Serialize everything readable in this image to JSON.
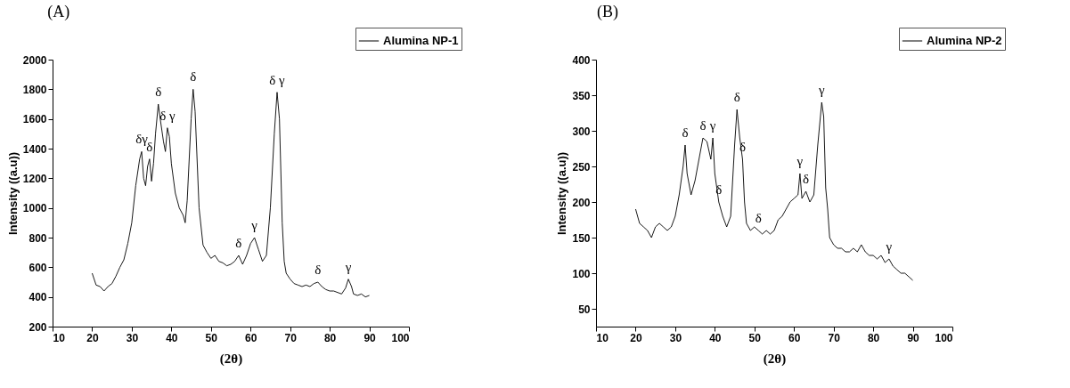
{
  "chart_data": [
    {
      "type": "line",
      "title": "(A)",
      "xlabel": "(2θ)",
      "ylabel": "Intensity ((a.u))",
      "xlim": [
        10,
        100
      ],
      "xticks": [
        10,
        20,
        30,
        40,
        50,
        60,
        70,
        80,
        90,
        100
      ],
      "ylim": [
        200,
        2000
      ],
      "yticks": [
        200,
        400,
        600,
        800,
        1000,
        1200,
        1400,
        1600,
        1800,
        2000
      ],
      "grid": false,
      "legend": "top right",
      "series": [
        {
          "name": "Alumina NP-1",
          "color": "#000000",
          "x": [
            20,
            21,
            22,
            23,
            24,
            25,
            26,
            27,
            28,
            29,
            30,
            31,
            32,
            32.5,
            33,
            33.5,
            34,
            34.5,
            35,
            35.5,
            36,
            36.7,
            37.3,
            38,
            38.5,
            39,
            39.5,
            40,
            41,
            42,
            43,
            43.5,
            44,
            45,
            45.5,
            46,
            47,
            48,
            49,
            50,
            51,
            52,
            53,
            54,
            55,
            56,
            57,
            58,
            59,
            60,
            61,
            62,
            63,
            64,
            65,
            66,
            66.7,
            67.3,
            68,
            68.5,
            69,
            70,
            71,
            72,
            73,
            74,
            75,
            76,
            77,
            78,
            79,
            80,
            81,
            82,
            83,
            84,
            84.7,
            85.5,
            86,
            87,
            88,
            89,
            90
          ],
          "values": [
            560,
            480,
            470,
            440,
            470,
            490,
            540,
            600,
            650,
            760,
            900,
            1150,
            1330,
            1380,
            1200,
            1150,
            1280,
            1330,
            1180,
            1300,
            1500,
            1700,
            1580,
            1450,
            1380,
            1540,
            1480,
            1300,
            1100,
            1000,
            950,
            900,
            1050,
            1600,
            1800,
            1650,
            1000,
            750,
            700,
            660,
            680,
            640,
            630,
            610,
            620,
            640,
            680,
            620,
            680,
            760,
            800,
            720,
            640,
            680,
            1000,
            1500,
            1780,
            1600,
            900,
            640,
            560,
            520,
            490,
            480,
            470,
            480,
            470,
            490,
            500,
            470,
            450,
            440,
            440,
            430,
            420,
            460,
            520,
            470,
            420,
            410,
            420,
            400,
            410
          ]
        }
      ],
      "annotations": [
        {
          "text": "δγ",
          "x": 32.5,
          "y": 1380
        },
        {
          "text": "δ",
          "x": 34.5,
          "y": 1330
        },
        {
          "text": "δ",
          "x": 36.7,
          "y": 1700
        },
        {
          "text": "δ γ",
          "x": 39,
          "y": 1540
        },
        {
          "text": "δ",
          "x": 45.5,
          "y": 1800
        },
        {
          "text": "δ γ",
          "x": 66.7,
          "y": 1780
        },
        {
          "text": "δ",
          "x": 57,
          "y": 680
        },
        {
          "text": "γ",
          "x": 61,
          "y": 800
        },
        {
          "text": "δ",
          "x": 77,
          "y": 500
        },
        {
          "text": "γ",
          "x": 84.7,
          "y": 520
        }
      ]
    },
    {
      "type": "line",
      "title": "(B)",
      "xlabel": "(2θ)",
      "ylabel": "Intensity ((a.u))",
      "xlim": [
        10,
        100
      ],
      "xticks": [
        10,
        20,
        30,
        40,
        50,
        60,
        70,
        80,
        90,
        100
      ],
      "ylim": [
        25,
        400
      ],
      "yticks": [
        50,
        100,
        150,
        200,
        250,
        300,
        350,
        400
      ],
      "grid": false,
      "legend": "top right",
      "series": [
        {
          "name": "Alumina NP-2",
          "color": "#000000",
          "x": [
            20,
            21,
            22,
            23,
            24,
            25,
            26,
            27,
            28,
            29,
            30,
            31,
            32,
            32.5,
            33,
            34,
            35,
            36,
            37,
            38,
            39,
            39.5,
            40,
            41,
            42,
            43,
            44,
            45,
            45.6,
            46.3,
            47,
            47.5,
            48,
            49,
            50,
            51,
            52,
            53,
            54,
            55,
            56,
            57,
            58,
            59,
            60,
            61,
            61.5,
            62,
            63,
            64,
            65,
            66,
            67,
            67.5,
            68,
            68.5,
            69,
            70,
            71,
            72,
            73,
            74,
            75,
            76,
            77,
            78,
            79,
            80,
            81,
            82,
            83,
            84,
            85,
            86,
            87,
            88,
            89,
            90
          ],
          "values": [
            190,
            170,
            165,
            160,
            150,
            165,
            170,
            165,
            160,
            165,
            180,
            210,
            250,
            280,
            240,
            210,
            230,
            260,
            290,
            285,
            260,
            290,
            240,
            200,
            180,
            165,
            180,
            280,
            330,
            290,
            260,
            200,
            170,
            160,
            165,
            160,
            155,
            160,
            155,
            160,
            175,
            180,
            190,
            200,
            205,
            210,
            240,
            205,
            215,
            200,
            210,
            280,
            340,
            320,
            220,
            190,
            150,
            140,
            135,
            135,
            130,
            130,
            135,
            130,
            140,
            130,
            125,
            125,
            120,
            125,
            115,
            120,
            110,
            105,
            100,
            100,
            95,
            90
          ]
        }
      ],
      "annotations": [
        {
          "text": "δ",
          "x": 32.5,
          "y": 280
        },
        {
          "text": "δ",
          "x": 37,
          "y": 290
        },
        {
          "text": "γ",
          "x": 39.5,
          "y": 290
        },
        {
          "text": "δ",
          "x": 41,
          "y": 200
        },
        {
          "text": "δ",
          "x": 45.6,
          "y": 330
        },
        {
          "text": "δ",
          "x": 47,
          "y": 260
        },
        {
          "text": "δ",
          "x": 51,
          "y": 160
        },
        {
          "text": "γ",
          "x": 61.5,
          "y": 240
        },
        {
          "text": "δ",
          "x": 63,
          "y": 215
        },
        {
          "text": "γ",
          "x": 67,
          "y": 340
        },
        {
          "text": "γ",
          "x": 84,
          "y": 120
        }
      ]
    }
  ]
}
